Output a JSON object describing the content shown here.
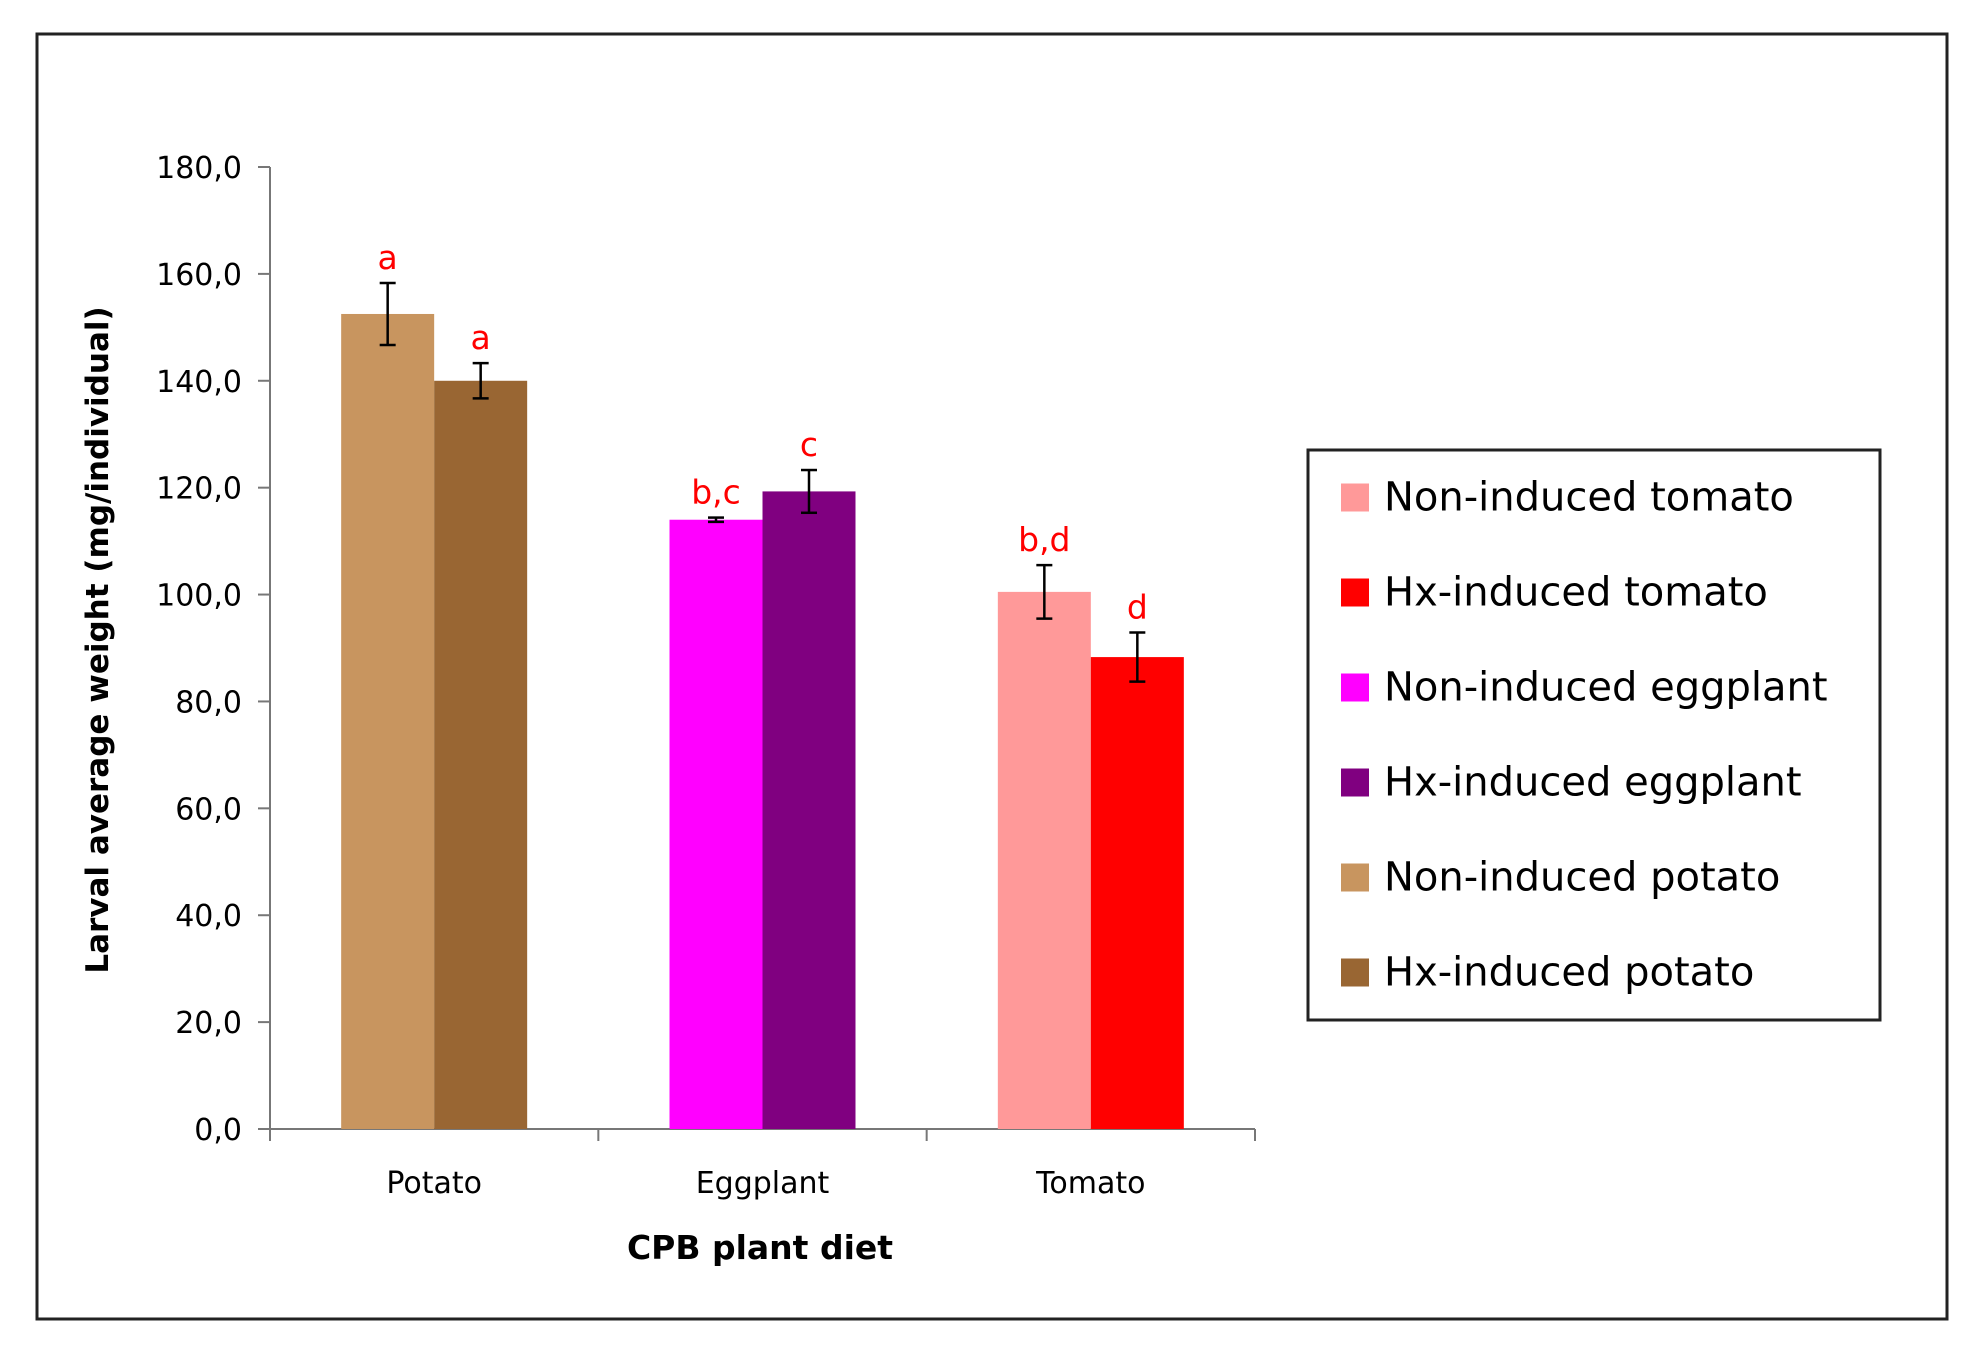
{
  "chart_data": {
    "type": "bar",
    "xlabel": "CPB plant diet",
    "ylabel": "Larval average weight (mg/individual)",
    "ylim": [
      0,
      180
    ],
    "y_ticks": [
      "0,0",
      "20,0",
      "40,0",
      "60,0",
      "80,0",
      "100,0",
      "120,0",
      "140,0",
      "160,0",
      "180,0"
    ],
    "categories": [
      "Potato",
      "Eggplant",
      "Tomato"
    ],
    "bars": [
      {
        "category": "Potato",
        "series": "Non-induced potato",
        "value": 152.5,
        "error": 5.8,
        "letter": "a",
        "color": "#C8955F"
      },
      {
        "category": "Potato",
        "series": "Hx-induced potato",
        "value": 140.0,
        "error": 3.3,
        "letter": "a",
        "color": "#996633"
      },
      {
        "category": "Eggplant",
        "series": "Non-induced eggplant",
        "value": 114.0,
        "error": 0.4,
        "letter": "b,c",
        "color": "#FF00FF"
      },
      {
        "category": "Eggplant",
        "series": "Hx-induced eggplant",
        "value": 119.3,
        "error": 4.0,
        "letter": "c",
        "color": "#800080"
      },
      {
        "category": "Tomato",
        "series": "Non-induced tomato",
        "value": 100.5,
        "error": 5.0,
        "letter": "b,d",
        "color": "#FF9999"
      },
      {
        "category": "Tomato",
        "series": "Hx-induced tomato",
        "value": 88.3,
        "error": 4.6,
        "letter": "d",
        "color": "#FF0000"
      }
    ],
    "legend": [
      {
        "name": "Non-induced tomato",
        "color": "#FF9999"
      },
      {
        "name": "Hx-induced tomato",
        "color": "#FF0000"
      },
      {
        "name": "Non-induced eggplant",
        "color": "#FF00FF"
      },
      {
        "name": "Hx-induced eggplant",
        "color": "#800080"
      },
      {
        "name": "Non-induced potato",
        "color": "#C8955F"
      },
      {
        "name": "Hx-induced potato",
        "color": "#996633"
      }
    ],
    "legend_position": "right",
    "letter_color": "#FF0000",
    "grid": false
  }
}
